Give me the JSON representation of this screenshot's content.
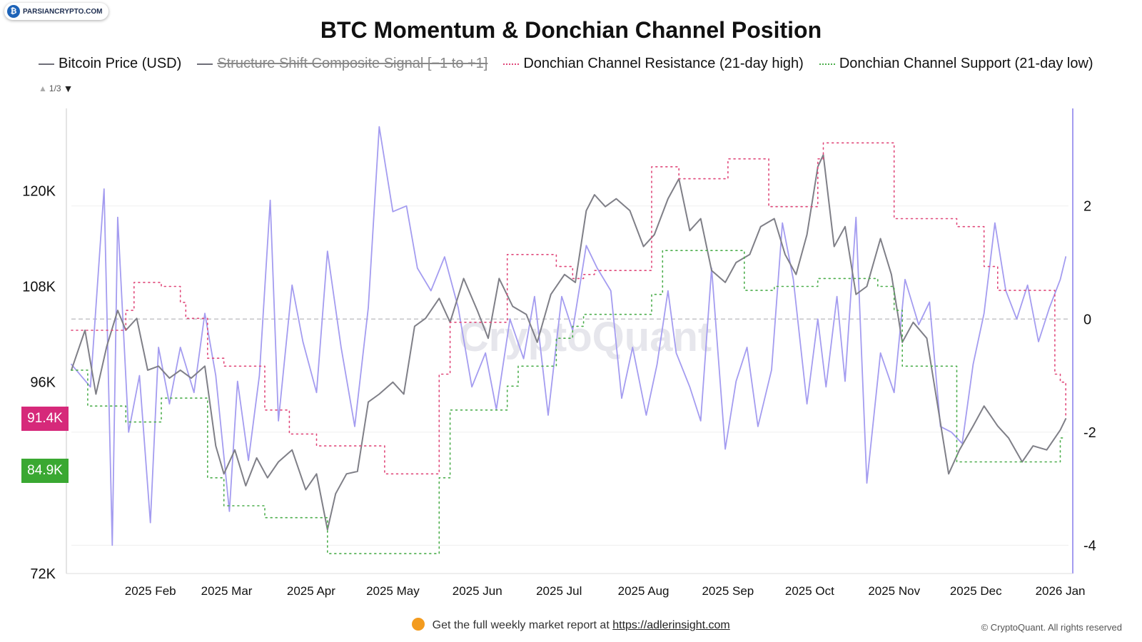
{
  "badge": {
    "text": "PARSIANCRYPTO.COM",
    "icon": "bitcoin-icon"
  },
  "chart_data": {
    "type": "line",
    "title": "BTC Momentum & Donchian Channel Position",
    "legend": [
      {
        "name": "Bitcoin Price (USD)",
        "color": "#6e6e78",
        "style": "solid",
        "hidden": false
      },
      {
        "name": "Structure Shift Composite Signal [−1 to +1]",
        "color": "#6e6e78",
        "style": "solid",
        "hidden": true
      },
      {
        "name": "Donchian Channel Resistance (21-day high)",
        "color": "#e0487a",
        "style": "dotted",
        "hidden": false
      },
      {
        "name": "Donchian Channel Support (21-day low)",
        "color": "#4cae4c",
        "style": "dotted",
        "hidden": false
      }
    ],
    "legend_position": "top",
    "pager": "1/3",
    "x_ticks": [
      "2025 Feb",
      "2025 Mar",
      "2025 Apr",
      "2025 May",
      "2025 Jun",
      "2025 Jul",
      "2025 Aug",
      "2025 Sep",
      "2025 Oct",
      "2025 Nov",
      "2025 Dec",
      "2026 Jan"
    ],
    "x_range": [
      "2025-01-03",
      "2026-01-04"
    ],
    "y_left": {
      "ticks": [
        "120K",
        "108K",
        "96K",
        "72K"
      ],
      "tick_values": [
        120000,
        108000,
        96000,
        72000
      ],
      "range": [
        72000,
        130500
      ]
    },
    "y_right": {
      "ticks": [
        "2",
        "0",
        "-2",
        "-4"
      ],
      "tick_values": [
        2,
        0,
        -2,
        -4
      ],
      "range": [
        -4.5,
        3.75
      ],
      "zero_line": true
    },
    "grid": true,
    "price_tags": [
      {
        "label": "91.4K",
        "value": 91400,
        "color": "#d6297a"
      },
      {
        "label": "84.9K",
        "value": 84900,
        "color": "#3aa832"
      }
    ],
    "series": [
      {
        "name": "Bitcoin Price (USD)",
        "axis": "left",
        "color": "#7f7f87",
        "x": [
          "2025-01-03",
          "2025-01-08",
          "2025-01-12",
          "2025-01-16",
          "2025-01-20",
          "2025-01-23",
          "2025-01-27",
          "2025-01-31",
          "2025-02-04",
          "2025-02-08",
          "2025-02-12",
          "2025-02-16",
          "2025-02-21",
          "2025-02-25",
          "2025-02-28",
          "2025-03-04",
          "2025-03-08",
          "2025-03-12",
          "2025-03-16",
          "2025-03-20",
          "2025-03-25",
          "2025-03-30",
          "2025-04-03",
          "2025-04-07",
          "2025-04-10",
          "2025-04-14",
          "2025-04-18",
          "2025-04-22",
          "2025-04-26",
          "2025-05-01",
          "2025-05-05",
          "2025-05-09",
          "2025-05-13",
          "2025-05-18",
          "2025-05-22",
          "2025-05-27",
          "2025-06-01",
          "2025-06-05",
          "2025-06-09",
          "2025-06-14",
          "2025-06-19",
          "2025-06-23",
          "2025-06-28",
          "2025-07-03",
          "2025-07-07",
          "2025-07-11",
          "2025-07-14",
          "2025-07-18",
          "2025-07-22",
          "2025-07-27",
          "2025-08-01",
          "2025-08-05",
          "2025-08-10",
          "2025-08-14",
          "2025-08-18",
          "2025-08-22",
          "2025-08-26",
          "2025-08-31",
          "2025-09-04",
          "2025-09-09",
          "2025-09-13",
          "2025-09-18",
          "2025-09-22",
          "2025-09-26",
          "2025-09-30",
          "2025-10-04",
          "2025-10-06",
          "2025-10-10",
          "2025-10-14",
          "2025-10-18",
          "2025-10-22",
          "2025-10-27",
          "2025-10-31",
          "2025-11-04",
          "2025-11-08",
          "2025-11-13",
          "2025-11-17",
          "2025-11-21",
          "2025-11-25",
          "2025-11-30",
          "2025-12-04",
          "2025-12-09",
          "2025-12-13",
          "2025-12-18",
          "2025-12-22",
          "2025-12-27",
          "2026-01-01",
          "2026-01-03"
        ],
        "y": [
          97500,
          102500,
          94500,
          100500,
          105000,
          102500,
          104000,
          97500,
          98000,
          96500,
          97500,
          96500,
          98000,
          88000,
          84500,
          87500,
          83000,
          86500,
          84000,
          86000,
          87500,
          82500,
          84500,
          77500,
          82000,
          84500,
          84800,
          93500,
          94500,
          96000,
          94500,
          103000,
          104000,
          106500,
          103500,
          109000,
          105000,
          101500,
          109000,
          105500,
          104500,
          101000,
          107000,
          109500,
          108500,
          117500,
          119500,
          118000,
          119000,
          117500,
          113000,
          114500,
          119000,
          121500,
          115000,
          116500,
          110000,
          108500,
          111000,
          112000,
          115500,
          116500,
          112000,
          109500,
          114500,
          123000,
          124500,
          113000,
          115500,
          107000,
          108000,
          114000,
          109500,
          101000,
          103500,
          101500,
          93000,
          84500,
          87500,
          90500,
          93000,
          90500,
          89000,
          86000,
          88000,
          87500,
          90000,
          91400
        ]
      },
      {
        "name": "Structure Shift Composite Signal [−1 to +1]",
        "axis": "right",
        "color": "#a49cf0",
        "x": [
          "2025-01-03",
          "2025-01-10",
          "2025-01-15",
          "2025-01-18",
          "2025-01-20",
          "2025-01-24",
          "2025-01-28",
          "2025-02-01",
          "2025-02-04",
          "2025-02-08",
          "2025-02-12",
          "2025-02-17",
          "2025-02-21",
          "2025-02-25",
          "2025-03-02",
          "2025-03-05",
          "2025-03-09",
          "2025-03-13",
          "2025-03-17",
          "2025-03-20",
          "2025-03-25",
          "2025-03-29",
          "2025-04-03",
          "2025-04-07",
          "2025-04-12",
          "2025-04-17",
          "2025-04-22",
          "2025-04-26",
          "2025-05-01",
          "2025-05-06",
          "2025-05-10",
          "2025-05-15",
          "2025-05-20",
          "2025-05-25",
          "2025-05-30",
          "2025-06-04",
          "2025-06-08",
          "2025-06-13",
          "2025-06-18",
          "2025-06-22",
          "2025-06-27",
          "2025-07-02",
          "2025-07-06",
          "2025-07-11",
          "2025-07-15",
          "2025-07-20",
          "2025-07-24",
          "2025-07-28",
          "2025-08-02",
          "2025-08-06",
          "2025-08-10",
          "2025-08-13",
          "2025-08-18",
          "2025-08-22",
          "2025-08-26",
          "2025-08-31",
          "2025-09-04",
          "2025-09-08",
          "2025-09-12",
          "2025-09-17",
          "2025-09-21",
          "2025-09-25",
          "2025-09-30",
          "2025-10-04",
          "2025-10-07",
          "2025-10-11",
          "2025-10-14",
          "2025-10-18",
          "2025-10-22",
          "2025-10-27",
          "2025-11-01",
          "2025-11-05",
          "2025-11-10",
          "2025-11-14",
          "2025-11-18",
          "2025-11-22",
          "2025-11-26",
          "2025-11-30",
          "2025-12-04",
          "2025-12-08",
          "2025-12-12",
          "2025-12-16",
          "2025-12-20",
          "2025-12-24",
          "2025-12-28",
          "2026-01-01",
          "2026-01-03"
        ],
        "y": [
          -0.8,
          -1.2,
          2.3,
          -4.0,
          1.8,
          -2.0,
          -1.0,
          -3.6,
          -0.5,
          -1.5,
          -0.5,
          -1.3,
          0.1,
          -1.0,
          -3.4,
          -1.1,
          -2.5,
          -1.0,
          2.1,
          -1.8,
          0.6,
          -0.4,
          -1.3,
          1.2,
          -0.5,
          -1.9,
          0.2,
          3.4,
          1.9,
          2.0,
          0.9,
          0.5,
          1.1,
          0.2,
          -1.2,
          -0.6,
          -1.6,
          0.0,
          -0.7,
          0.4,
          -1.7,
          0.4,
          -0.2,
          1.3,
          0.9,
          0.5,
          -1.4,
          -0.5,
          -1.7,
          -0.8,
          0.5,
          -0.6,
          -1.2,
          -1.8,
          0.9,
          -2.3,
          -1.1,
          -0.5,
          -1.9,
          -0.9,
          1.7,
          0.7,
          -1.5,
          0.0,
          -1.2,
          0.4,
          -1.1,
          1.8,
          -2.9,
          -0.6,
          -1.3,
          0.7,
          -0.1,
          0.3,
          -1.9,
          -2.0,
          -2.2,
          -0.8,
          0.1,
          1.7,
          0.5,
          0.0,
          0.6,
          -0.4,
          0.2,
          0.7,
          1.1
        ]
      },
      {
        "name": "Donchian Channel Resistance (21-day high)",
        "axis": "left",
        "color": "#e0487a",
        "x": [
          "2025-01-03",
          "2025-01-09",
          "2025-01-23",
          "2025-01-26",
          "2025-02-05",
          "2025-02-12",
          "2025-02-14",
          "2025-02-22",
          "2025-02-28",
          "2025-03-12",
          "2025-03-15",
          "2025-03-24",
          "2025-04-03",
          "2025-04-07",
          "2025-04-28",
          "2025-05-06",
          "2025-05-18",
          "2025-05-22",
          "2025-06-12",
          "2025-06-16",
          "2025-06-30",
          "2025-07-03",
          "2025-07-06",
          "2025-07-10",
          "2025-07-14",
          "2025-08-04",
          "2025-08-08",
          "2025-08-14",
          "2025-09-01",
          "2025-09-07",
          "2025-09-16",
          "2025-09-18",
          "2025-10-04",
          "2025-10-06",
          "2025-10-26",
          "2025-11-01",
          "2025-11-04",
          "2025-11-24",
          "2025-12-04",
          "2025-12-09",
          "2025-12-30",
          "2026-01-01",
          "2026-01-03"
        ],
        "y": [
          102500,
          102500,
          105000,
          108500,
          108000,
          106000,
          104000,
          99000,
          98000,
          98000,
          92500,
          89500,
          88000,
          88000,
          84500,
          84500,
          97000,
          103500,
          112000,
          112000,
          110500,
          110500,
          109000,
          109500,
          110000,
          123000,
          123000,
          121500,
          124000,
          124000,
          118000,
          118000,
          124000,
          126000,
          126000,
          116500,
          116500,
          115500,
          110500,
          107500,
          97000,
          96000,
          91500
        ]
      },
      {
        "name": "Donchian Channel Support (21-day low)",
        "axis": "left",
        "color": "#4cae4c",
        "x": [
          "2025-01-03",
          "2025-01-09",
          "2025-01-23",
          "2025-01-26",
          "2025-02-05",
          "2025-02-12",
          "2025-02-14",
          "2025-02-22",
          "2025-02-28",
          "2025-03-12",
          "2025-03-15",
          "2025-03-24",
          "2025-04-03",
          "2025-04-07",
          "2025-04-28",
          "2025-05-06",
          "2025-05-18",
          "2025-05-22",
          "2025-06-12",
          "2025-06-16",
          "2025-06-30",
          "2025-07-03",
          "2025-07-06",
          "2025-07-10",
          "2025-07-14",
          "2025-08-04",
          "2025-08-08",
          "2025-08-14",
          "2025-09-01",
          "2025-09-07",
          "2025-09-16",
          "2025-09-18",
          "2025-10-04",
          "2025-10-06",
          "2025-10-26",
          "2025-11-01",
          "2025-11-04",
          "2025-11-24",
          "2025-12-04",
          "2025-12-09",
          "2025-12-30",
          "2026-01-01",
          "2026-01-03"
        ],
        "y": [
          97500,
          93000,
          91000,
          91000,
          94000,
          94000,
          94000,
          84000,
          80500,
          80500,
          79000,
          79000,
          79000,
          74500,
          74500,
          74500,
          84000,
          92500,
          95500,
          98000,
          101500,
          101500,
          103000,
          104500,
          104500,
          107000,
          112500,
          112500,
          112500,
          107500,
          107500,
          108000,
          109000,
          109000,
          108000,
          105000,
          98000,
          86000,
          86000,
          86000,
          86000,
          89000,
          89000
        ]
      }
    ]
  },
  "watermark": "CryptoQuant",
  "footer": {
    "text": "Get the full weekly market report at",
    "link": "https://adlerinsight.com",
    "icon": "coin-icon"
  },
  "copyright": "© CryptoQuant. All rights reserved"
}
